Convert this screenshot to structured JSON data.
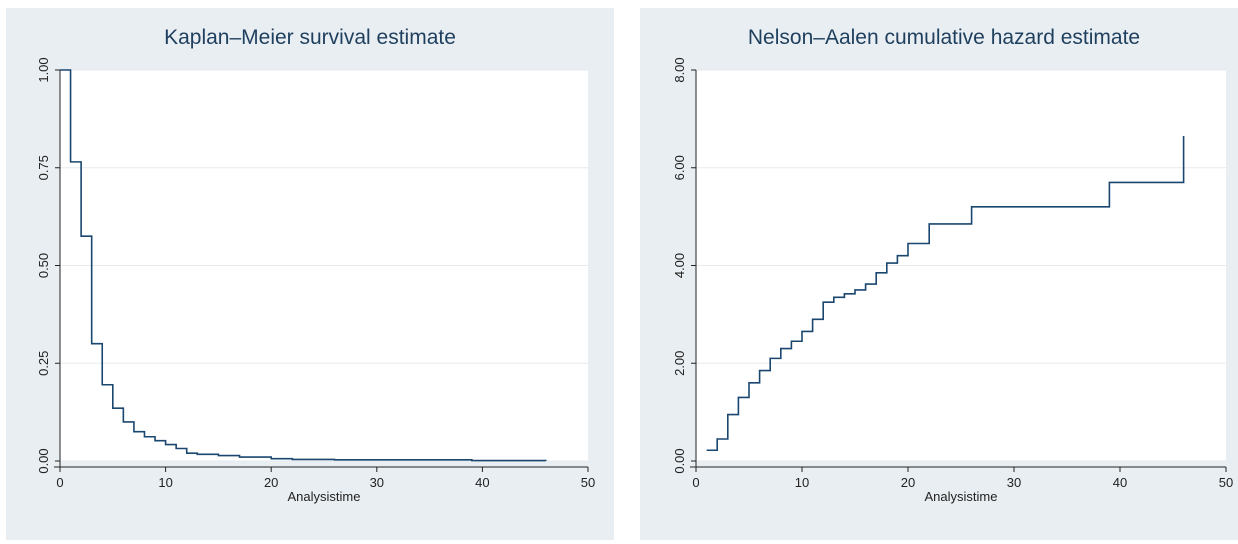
{
  "colors": {
    "panel_bg": "#e9eef2",
    "plot_bg": "#ffffff",
    "line": "#1a476f",
    "grid": "#e6ebef",
    "axis": "#222222"
  },
  "chart_data": [
    {
      "type": "line",
      "step": true,
      "title": "Kaplan–Meier survival estimate",
      "xlabel": "Analysistime",
      "ylabel": "",
      "xlim": [
        0,
        50
      ],
      "ylim": [
        0,
        1
      ],
      "xticks": [
        0,
        10,
        20,
        30,
        40,
        50
      ],
      "yticks": [
        0,
        0.25,
        0.5,
        0.75,
        1.0
      ],
      "xtick_labels": [
        "0",
        "10",
        "20",
        "30",
        "40",
        "50"
      ],
      "ytick_labels": [
        "0.00",
        "0.25",
        "0.50",
        "0.75",
        "1.00"
      ],
      "grid": true,
      "series": [
        {
          "x": [
            0,
            1,
            2,
            3,
            4,
            5,
            6,
            7,
            8,
            9,
            10,
            11,
            12,
            13,
            15,
            17,
            20,
            22,
            26,
            39,
            46
          ],
          "y": [
            1.0,
            0.765,
            0.575,
            0.3,
            0.195,
            0.135,
            0.1,
            0.075,
            0.062,
            0.052,
            0.042,
            0.032,
            0.02,
            0.017,
            0.014,
            0.01,
            0.006,
            0.004,
            0.003,
            0.001,
            0.0
          ]
        }
      ]
    },
    {
      "type": "line",
      "step": true,
      "title": "Nelson–Aalen cumulative hazard estimate",
      "xlabel": "Analysistime",
      "ylabel": "",
      "xlim": [
        0,
        50
      ],
      "ylim": [
        0,
        8
      ],
      "xticks": [
        0,
        10,
        20,
        30,
        40,
        50
      ],
      "yticks": [
        0,
        2,
        4,
        6,
        8
      ],
      "xtick_labels": [
        "0",
        "10",
        "20",
        "30",
        "40",
        "50"
      ],
      "ytick_labels": [
        "0.00",
        "2.00",
        "4.00",
        "6.00",
        "8.00"
      ],
      "grid": true,
      "series": [
        {
          "x": [
            1,
            2,
            3,
            4,
            5,
            6,
            7,
            8,
            9,
            10,
            11,
            12,
            13,
            14,
            15,
            16,
            17,
            18,
            19,
            20,
            22,
            26,
            39,
            46
          ],
          "y": [
            0.22,
            0.45,
            0.95,
            1.3,
            1.6,
            1.85,
            2.1,
            2.3,
            2.45,
            2.65,
            2.9,
            3.25,
            3.35,
            3.42,
            3.5,
            3.62,
            3.85,
            4.05,
            4.2,
            4.45,
            4.85,
            5.2,
            5.7,
            6.65
          ]
        }
      ]
    }
  ]
}
